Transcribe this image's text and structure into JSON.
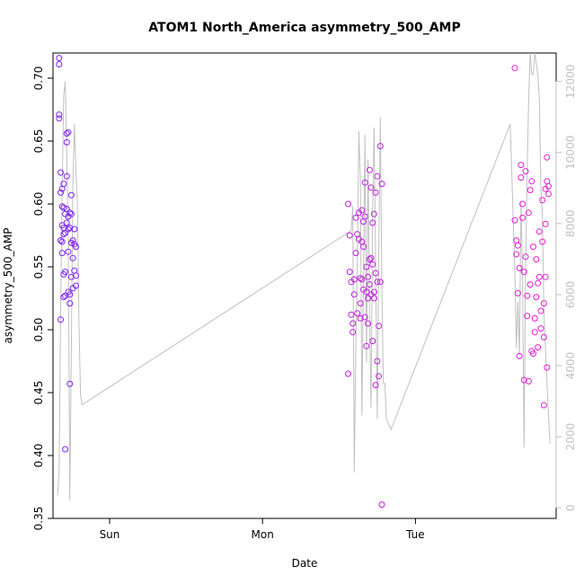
{
  "chart_data": {
    "type": "scatter",
    "title": "ATOM1 North_America asymmetry_500_AMP",
    "xlabel": "Date",
    "ylabel": "asymmetry_500_AMP",
    "x_ticks": [
      "Sun",
      "Mon",
      "Tue"
    ],
    "y_ticks": [
      "0.35",
      "0.40",
      "0.45",
      "0.50",
      "0.55",
      "0.60",
      "0.65",
      "0.70"
    ],
    "ylim": [
      0.35,
      0.72
    ],
    "y2_ticks": [
      "0",
      "2000",
      "4000",
      "6000",
      "8000",
      "10000",
      "12000"
    ],
    "y2lim": [
      -300,
      12800
    ],
    "xlim": [
      -0.37,
      2.92
    ],
    "grid": false,
    "colors": {
      "points_start": "#7b22f0",
      "points_end": "#e81fd1",
      "line": "#c0c0c0",
      "secondary_axis": "#c0c0c0",
      "text": "#000000"
    },
    "series": [
      {
        "kind": "points",
        "x_units": "days from Sun 00:00",
        "x": [
          -0.33,
          -0.33,
          -0.33,
          -0.33,
          -0.32,
          -0.32,
          -0.32,
          -0.32,
          -0.31,
          -0.31,
          -0.31,
          -0.31,
          -0.31,
          -0.3,
          -0.3,
          -0.3,
          -0.3,
          -0.3,
          -0.3,
          -0.29,
          -0.29,
          -0.29,
          -0.29,
          -0.29,
          -0.28,
          -0.28,
          -0.28,
          -0.28,
          -0.28,
          -0.27,
          -0.27,
          -0.27,
          -0.27,
          -0.27,
          -0.26,
          -0.26,
          -0.26,
          -0.26,
          -0.26,
          -0.25,
          -0.25,
          -0.25,
          -0.25,
          -0.24,
          -0.24,
          -0.24,
          -0.23,
          -0.23,
          -0.23,
          -0.22,
          -0.22,
          -0.22,
          1.56,
          1.56,
          1.57,
          1.57,
          1.58,
          1.58,
          1.59,
          1.59,
          1.6,
          1.6,
          1.61,
          1.61,
          1.62,
          1.62,
          1.63,
          1.63,
          1.64,
          1.64,
          1.64,
          1.65,
          1.65,
          1.65,
          1.66,
          1.66,
          1.66,
          1.67,
          1.67,
          1.67,
          1.68,
          1.68,
          1.68,
          1.69,
          1.69,
          1.69,
          1.7,
          1.7,
          1.7,
          1.71,
          1.71,
          1.71,
          1.72,
          1.72,
          1.72,
          1.73,
          1.73,
          1.73,
          1.74,
          1.74,
          1.74,
          1.75,
          1.75,
          1.75,
          1.76,
          1.76,
          1.77,
          1.77,
          1.78,
          1.78,
          2.65,
          2.65,
          2.66,
          2.66,
          2.67,
          2.67,
          2.68,
          2.68,
          2.69,
          2.69,
          2.7,
          2.7,
          2.71,
          2.71,
          2.72,
          2.72,
          2.73,
          2.73,
          2.74,
          2.74,
          2.75,
          2.75,
          2.76,
          2.76,
          2.77,
          2.77,
          2.78,
          2.78,
          2.79,
          2.79,
          2.8,
          2.8,
          2.81,
          2.81,
          2.82,
          2.82,
          2.83,
          2.83,
          2.84,
          2.84,
          2.84,
          2.85,
          2.85,
          2.85,
          2.86,
          2.86,
          2.86,
          2.87,
          2.87
        ],
        "y": [
          0.716,
          0.711,
          0.671,
          0.668,
          0.625,
          0.609,
          0.571,
          0.508,
          0.612,
          0.598,
          0.583,
          0.57,
          0.561,
          0.616,
          0.597,
          0.581,
          0.576,
          0.544,
          0.526,
          0.592,
          0.577,
          0.546,
          0.527,
          0.405,
          0.656,
          0.649,
          0.622,
          0.596,
          0.585,
          0.657,
          0.59,
          0.58,
          0.562,
          0.53,
          0.593,
          0.581,
          0.528,
          0.521,
          0.457,
          0.607,
          0.592,
          0.569,
          0.542,
          0.571,
          0.557,
          0.533,
          0.58,
          0.568,
          0.547,
          0.566,
          0.543,
          0.535,
          0.6,
          0.465,
          0.575,
          0.546,
          0.538,
          0.512,
          0.505,
          0.498,
          0.54,
          0.528,
          0.589,
          0.561,
          0.576,
          0.513,
          0.593,
          0.572,
          0.541,
          0.521,
          0.509,
          0.595,
          0.57,
          0.54,
          0.586,
          0.566,
          0.532,
          0.617,
          0.59,
          0.51,
          0.55,
          0.53,
          0.487,
          0.525,
          0.505,
          0.542,
          0.627,
          0.556,
          0.536,
          0.613,
          0.557,
          0.528,
          0.585,
          0.552,
          0.491,
          0.592,
          0.53,
          0.525,
          0.609,
          0.545,
          0.456,
          0.622,
          0.538,
          0.475,
          0.503,
          0.463,
          0.646,
          0.538,
          0.361,
          0.616,
          0.708,
          0.587,
          0.571,
          0.56,
          0.529,
          0.567,
          0.549,
          0.479,
          0.631,
          0.621,
          0.6,
          0.589,
          0.546,
          0.46,
          0.626,
          0.558,
          0.527,
          0.511,
          0.593,
          0.459,
          0.611,
          0.536,
          0.483,
          0.618,
          0.566,
          0.481,
          0.509,
          0.498,
          0.556,
          0.526,
          0.537,
          0.486,
          0.578,
          0.542,
          0.515,
          0.501,
          0.603,
          0.57,
          0.521,
          0.44,
          0.494,
          0.612,
          0.584,
          0.542,
          0.47,
          0.637,
          0.618,
          0.614,
          0.608
        ]
      },
      {
        "kind": "line",
        "axis": "secondary",
        "x_units": "days from Sun 00:00",
        "x": [
          -0.34,
          -0.33,
          -0.32,
          -0.31,
          -0.3,
          -0.29,
          -0.28,
          -0.27,
          -0.26,
          -0.25,
          -0.24,
          -0.23,
          -0.22,
          -0.21,
          -0.2,
          -0.19,
          -0.18,
          1.58,
          1.59,
          1.6,
          1.61,
          1.62,
          1.63,
          1.64,
          1.65,
          1.66,
          1.67,
          1.68,
          1.69,
          1.7,
          1.71,
          1.72,
          1.73,
          1.74,
          1.75,
          1.76,
          1.77,
          1.78,
          1.79,
          1.8,
          1.81,
          1.82,
          1.83,
          1.84,
          2.62,
          2.65,
          2.66,
          2.67,
          2.68,
          2.69,
          2.7,
          2.71,
          2.72,
          2.73,
          2.74,
          2.75,
          2.76,
          2.77,
          2.78,
          2.79,
          2.8,
          2.81,
          2.82,
          2.83,
          2.84,
          2.85,
          2.86,
          2.87,
          2.88
        ],
        "y": [
          350,
          1000,
          5500,
          9000,
          11600,
          12000,
          10000,
          7500,
          200,
          4500,
          9000,
          10800,
          9500,
          8500,
          5200,
          3200,
          2900,
          7800,
          8500,
          1000,
          4500,
          6800,
          10600,
          9300,
          2600,
          6300,
          10500,
          4100,
          9800,
          5500,
          2800,
          8300,
          10700,
          6800,
          2500,
          7200,
          11000,
          6300,
          3500,
          3500,
          2500,
          2400,
          2300,
          2200,
          10800,
          6700,
          4500,
          5800,
          4300,
          8600,
          6500,
          1700,
          6800,
          9400,
          11500,
          12800,
          12200,
          12200,
          12800,
          12500,
          12200,
          11500,
          9000,
          8200,
          5500,
          4500,
          3500,
          2600,
          1800
        ]
      }
    ]
  }
}
